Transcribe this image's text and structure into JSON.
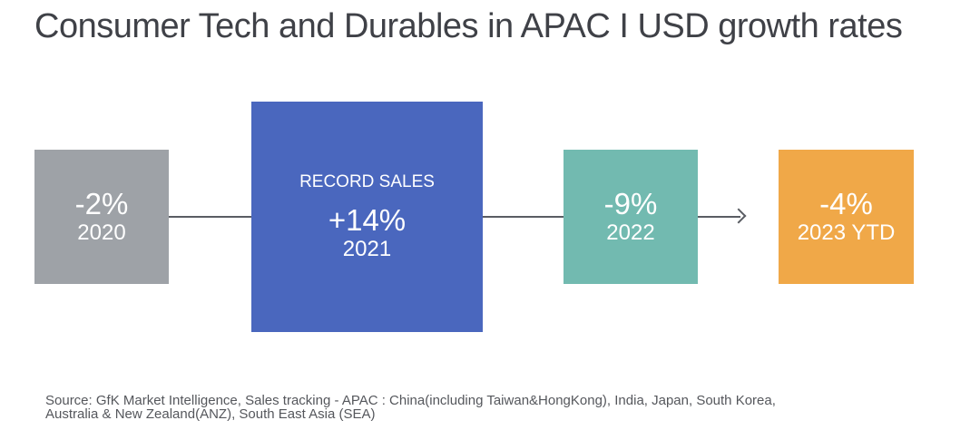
{
  "title": "Consumer Tech and Durables in APAC I USD growth rates",
  "stages": [
    {
      "growth": "-2%",
      "year": "2020",
      "color": "#9ea2a7"
    },
    {
      "tag": "RECORD SALES",
      "growth": "+14%",
      "year": "2021",
      "color": "#4a67be"
    },
    {
      "growth": "-9%",
      "year": "2022",
      "color": "#72bab0"
    },
    {
      "growth": "-4%",
      "year": "2023 YTD",
      "color": "#f0a848"
    }
  ],
  "source_line1": "Source: GfK Market Intelligence, Sales tracking - APAC : China(including Taiwan&HongKong), India, Japan, South Korea,",
  "source_line2": "Australia & New Zealand(ANZ), South East Asia (SEA)"
}
